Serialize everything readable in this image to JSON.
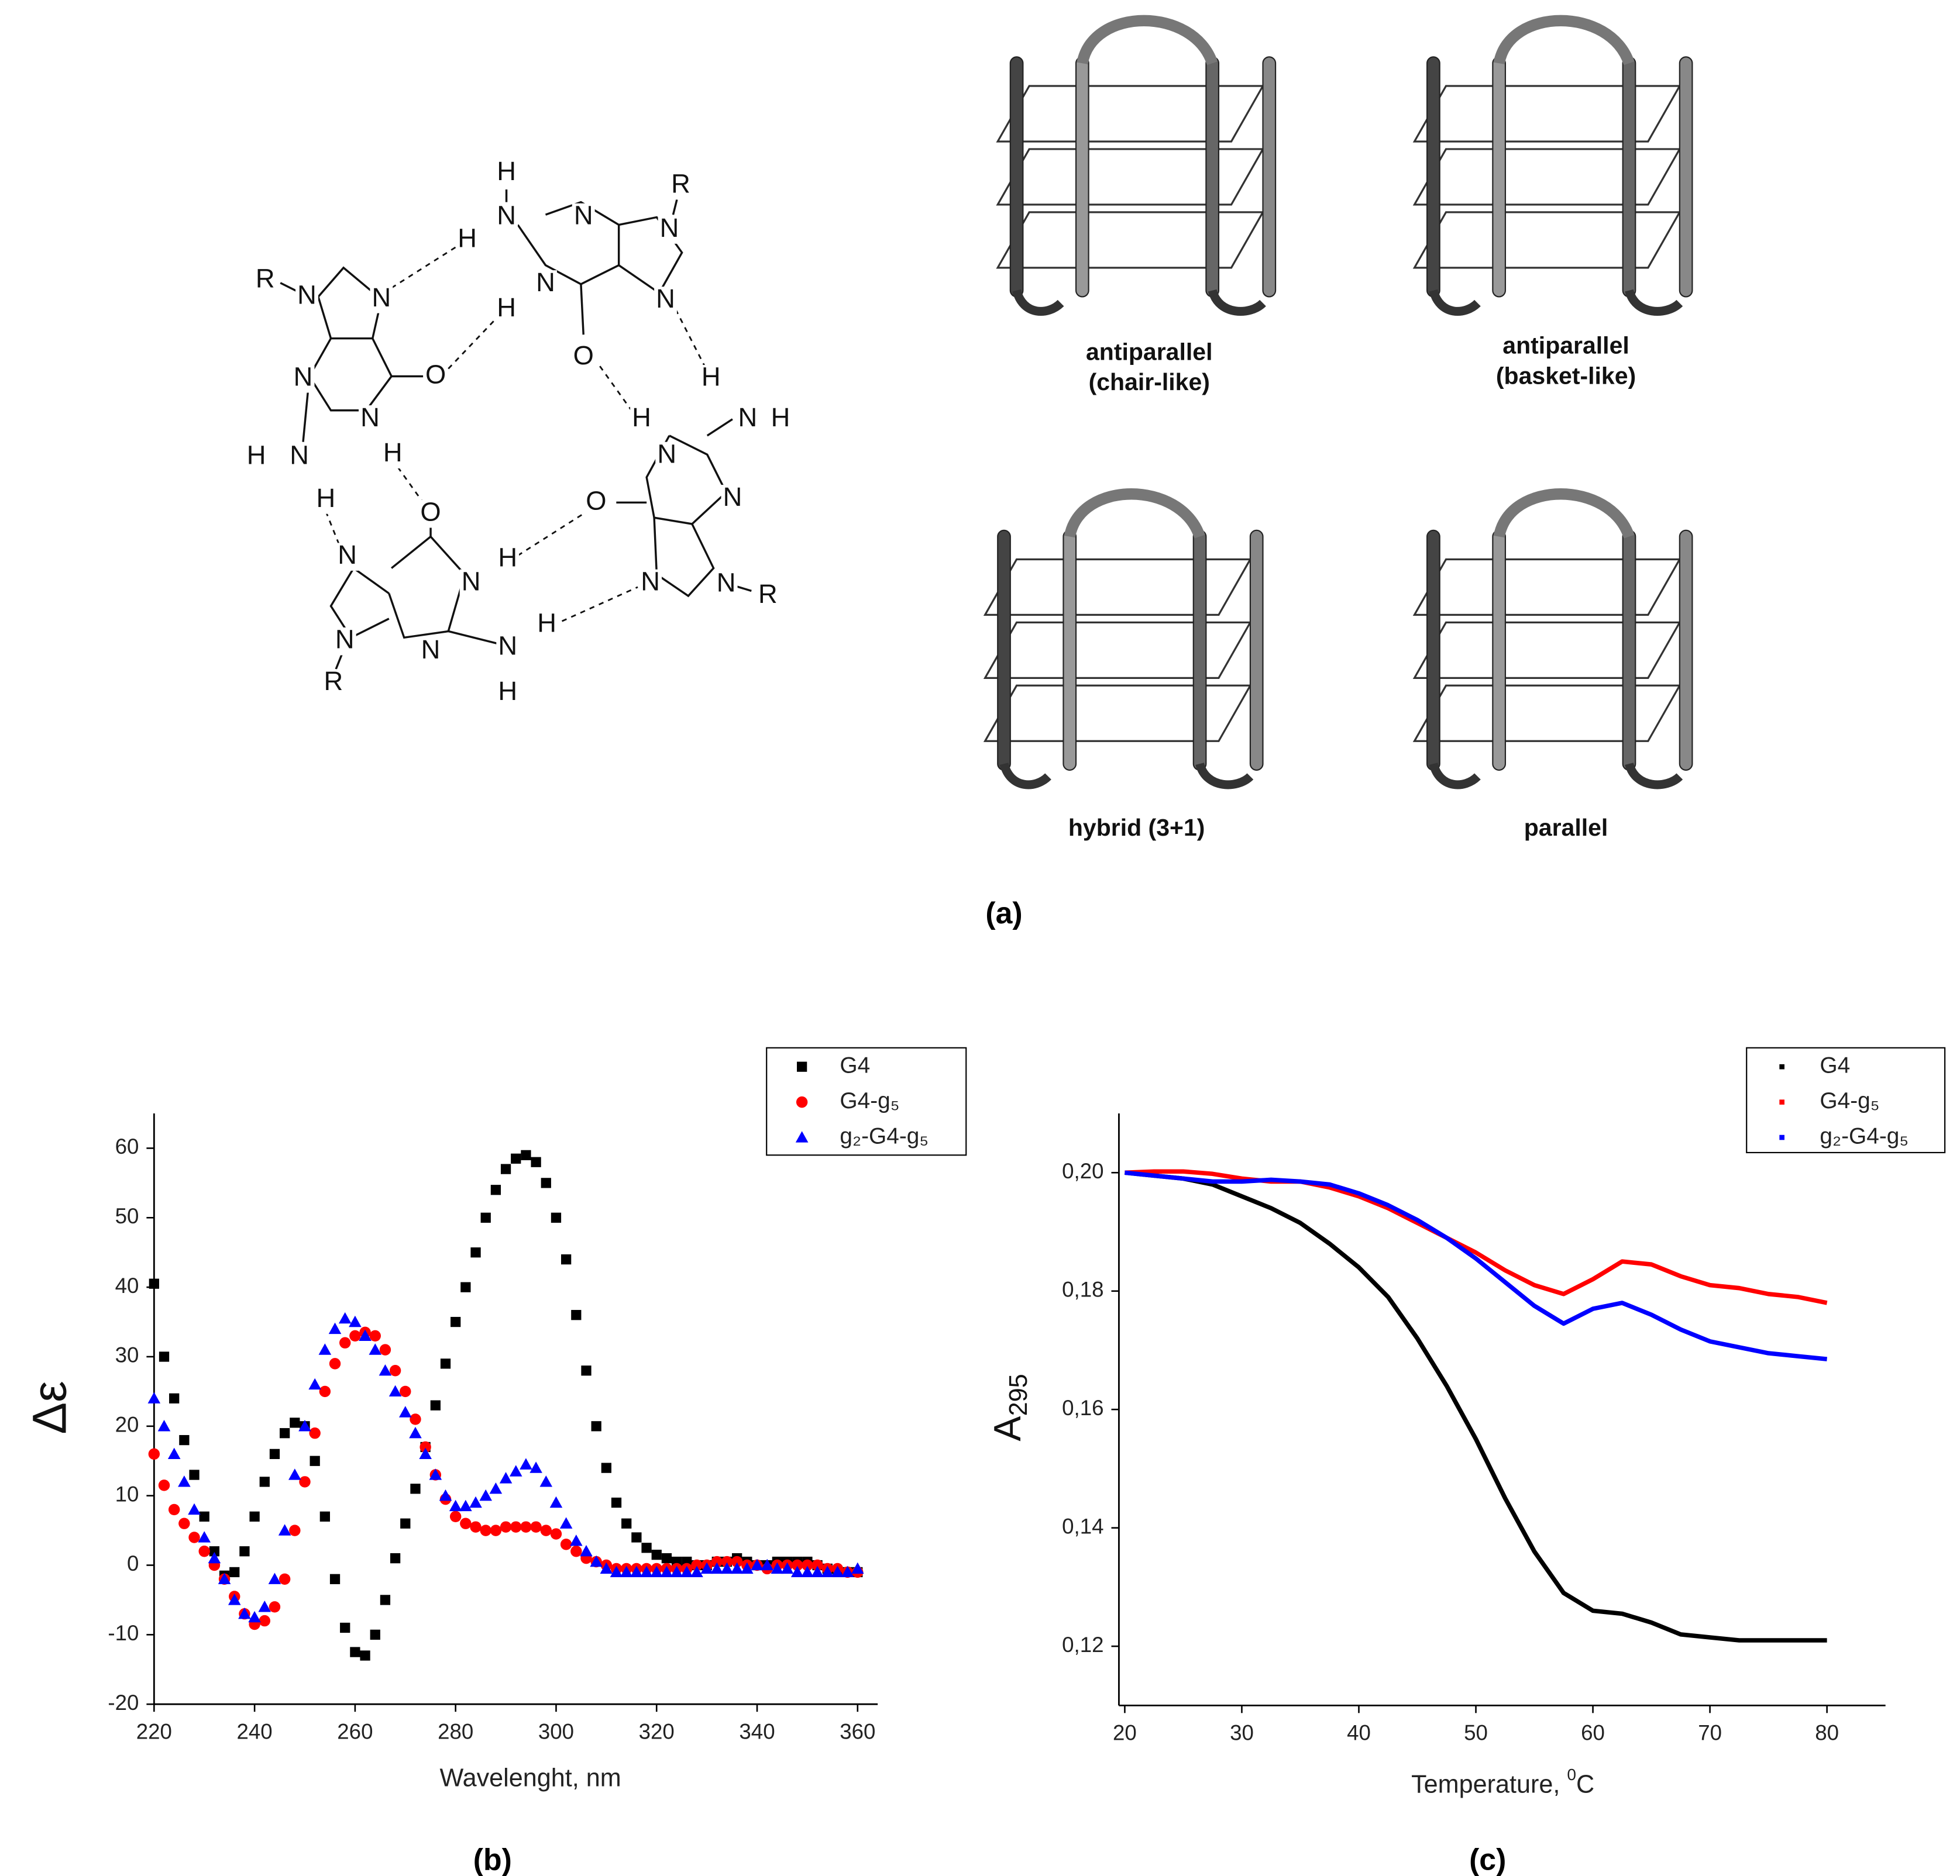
{
  "panel_a": {
    "atoms": [
      "R",
      "N",
      "N",
      "N",
      "O",
      "N",
      "H",
      "H",
      "N",
      "H",
      "H",
      "N",
      "H",
      "N",
      "N",
      "R",
      "N",
      "H",
      "N",
      "O",
      "H",
      "N",
      "H",
      "H",
      "N",
      "N",
      "O",
      "N",
      "N",
      "R",
      "O",
      "H",
      "N",
      "N",
      "N",
      "R",
      "N",
      "N",
      "H",
      "H"
    ],
    "quadruplexes": [
      [
        "antiparallel",
        "(chair-like)"
      ],
      [
        "antiparallel",
        "(basket-like)"
      ],
      [
        "hybrid (3+1)"
      ],
      [
        "parallel"
      ]
    ],
    "label": "(a)"
  },
  "panel_b_label": "(b)",
  "panel_c_label": "(c)",
  "chart_data": [
    {
      "type": "scatter",
      "x_label": "Wavelenght, nm",
      "y_label": "Δε",
      "x": [
        220,
        222,
        224,
        226,
        228,
        230,
        232,
        234,
        236,
        238,
        240,
        242,
        244,
        246,
        248,
        250,
        252,
        254,
        256,
        258,
        260,
        262,
        264,
        266,
        268,
        270,
        272,
        274,
        276,
        278,
        280,
        282,
        284,
        286,
        288,
        290,
        292,
        294,
        296,
        298,
        300,
        302,
        304,
        306,
        308,
        310,
        312,
        314,
        316,
        318,
        320,
        322,
        324,
        326,
        328,
        330,
        332,
        334,
        336,
        338,
        340,
        342,
        344,
        346,
        348,
        350,
        352,
        354,
        356,
        358,
        360
      ],
      "series": [
        {
          "name": "G4",
          "color": "#000000",
          "marker": "square",
          "values": [
            40.5,
            30,
            24,
            18,
            13,
            7,
            2,
            -1.5,
            -1,
            2,
            7,
            12,
            16,
            19,
            20.5,
            20,
            15,
            7,
            -2,
            -9,
            -12.5,
            -13,
            -10,
            -5,
            1,
            6,
            11,
            17,
            23,
            29,
            35,
            40,
            45,
            50,
            54,
            57,
            58.5,
            59,
            58,
            55,
            50,
            44,
            36,
            28,
            20,
            14,
            9,
            6,
            4,
            2.5,
            1.5,
            1,
            0.5,
            0.5,
            0,
            0,
            0.5,
            0.5,
            1,
            0.5,
            0,
            0,
            0.5,
            0.5,
            0.5,
            0.5,
            0,
            -0.5,
            -1,
            -1,
            -1
          ]
        },
        {
          "name": "G4-g₅",
          "color": "#ff0000",
          "marker": "circle",
          "values": [
            16,
            11.5,
            8,
            6,
            4,
            2,
            0,
            -2,
            -4.5,
            -7,
            -8.5,
            -8,
            -6,
            -2,
            5,
            12,
            19,
            25,
            29,
            32,
            33,
            33.5,
            33,
            31,
            28,
            25,
            21,
            17,
            13,
            9.5,
            7,
            6,
            5.5,
            5,
            5,
            5.5,
            5.5,
            5.5,
            5.5,
            5,
            4.5,
            3,
            2,
            1,
            0.5,
            0,
            -0.5,
            -0.5,
            -0.5,
            -0.5,
            -0.5,
            -0.5,
            -0.5,
            -0.5,
            0,
            0,
            0.5,
            0.5,
            0.5,
            0,
            0,
            -0.5,
            0,
            0,
            0,
            0,
            0,
            -0.5,
            -0.5,
            -1,
            -1
          ]
        },
        {
          "name": "g₂-G4-g₅",
          "color": "#0000ff",
          "marker": "triangle",
          "values": [
            24,
            20,
            16,
            12,
            8,
            4,
            1,
            -2,
            -5,
            -7,
            -7.5,
            -6,
            -2,
            5,
            13,
            20,
            26,
            31,
            34,
            35.5,
            35,
            33,
            31,
            28,
            25,
            22,
            19,
            16,
            13,
            10,
            8.5,
            8.5,
            9,
            10,
            11,
            12.5,
            13.5,
            14.5,
            14,
            12,
            9,
            6,
            3.5,
            2,
            0.5,
            -0.5,
            -1,
            -1,
            -1,
            -1,
            -1,
            -1,
            -1,
            -1,
            -1,
            -0.5,
            -0.5,
            -0.5,
            -0.5,
            -0.5,
            0,
            0,
            -0.5,
            -0.5,
            -1,
            -1,
            -1,
            -1,
            -1,
            -1,
            -0.5
          ]
        }
      ],
      "xlim": [
        220,
        364
      ],
      "ylim": [
        -20,
        65
      ],
      "xticks": [
        220,
        240,
        260,
        280,
        300,
        320,
        340,
        360
      ],
      "yticks": [
        -20,
        -10,
        0,
        10,
        20,
        30,
        40,
        50,
        60
      ],
      "legend": "top-right"
    },
    {
      "type": "line",
      "x_label": "Temperature, ",
      "x_label_sup": "0",
      "x_label_unit": "C",
      "y_label": "A",
      "y_label_sub": "295",
      "x": [
        20,
        22.5,
        25,
        27.5,
        30,
        32.5,
        35,
        37.5,
        40,
        42.5,
        45,
        47.5,
        50,
        52.5,
        55,
        57.5,
        60,
        62.5,
        65,
        67.5,
        70,
        72.5,
        75,
        77.5,
        80
      ],
      "series": [
        {
          "name": "G4",
          "color": "#000000",
          "values": [
            0.2,
            0.1995,
            0.199,
            0.198,
            0.196,
            0.194,
            0.1915,
            0.188,
            0.184,
            0.179,
            0.172,
            0.164,
            0.155,
            0.145,
            0.136,
            0.129,
            0.126,
            0.1255,
            0.124,
            0.122,
            0.1215,
            0.121,
            0.121,
            0.121,
            0.121
          ]
        },
        {
          "name": "G4-g₅",
          "color": "#ff0000",
          "values": [
            0.2,
            0.2002,
            0.2002,
            0.1998,
            0.199,
            0.1985,
            0.1985,
            0.1975,
            0.196,
            0.194,
            0.1915,
            0.189,
            0.1865,
            0.1835,
            0.181,
            0.1795,
            0.182,
            0.185,
            0.1845,
            0.1825,
            0.181,
            0.1805,
            0.1795,
            0.179,
            0.178
          ]
        },
        {
          "name": "g₂-G4-g₅",
          "color": "#0000ff",
          "values": [
            0.2,
            0.1995,
            0.199,
            0.1985,
            0.1985,
            0.1988,
            0.1985,
            0.198,
            0.1965,
            0.1945,
            0.192,
            0.189,
            0.1855,
            0.1815,
            0.1775,
            0.1745,
            0.177,
            0.178,
            0.176,
            0.1735,
            0.1715,
            0.1705,
            0.1695,
            0.169,
            0.1685
          ]
        }
      ],
      "xlim": [
        19.5,
        85
      ],
      "ylim": [
        0.11,
        0.21
      ],
      "xticks": [
        20,
        30,
        40,
        50,
        60,
        70,
        80
      ],
      "yticks": [
        {
          "value": 0.12,
          "label": "0,12"
        },
        {
          "value": 0.14,
          "label": "0,14"
        },
        {
          "value": 0.16,
          "label": "0,16"
        },
        {
          "value": 0.18,
          "label": "0,18"
        },
        {
          "value": 0.2,
          "label": "0,20"
        }
      ],
      "legend": "top-right"
    }
  ]
}
